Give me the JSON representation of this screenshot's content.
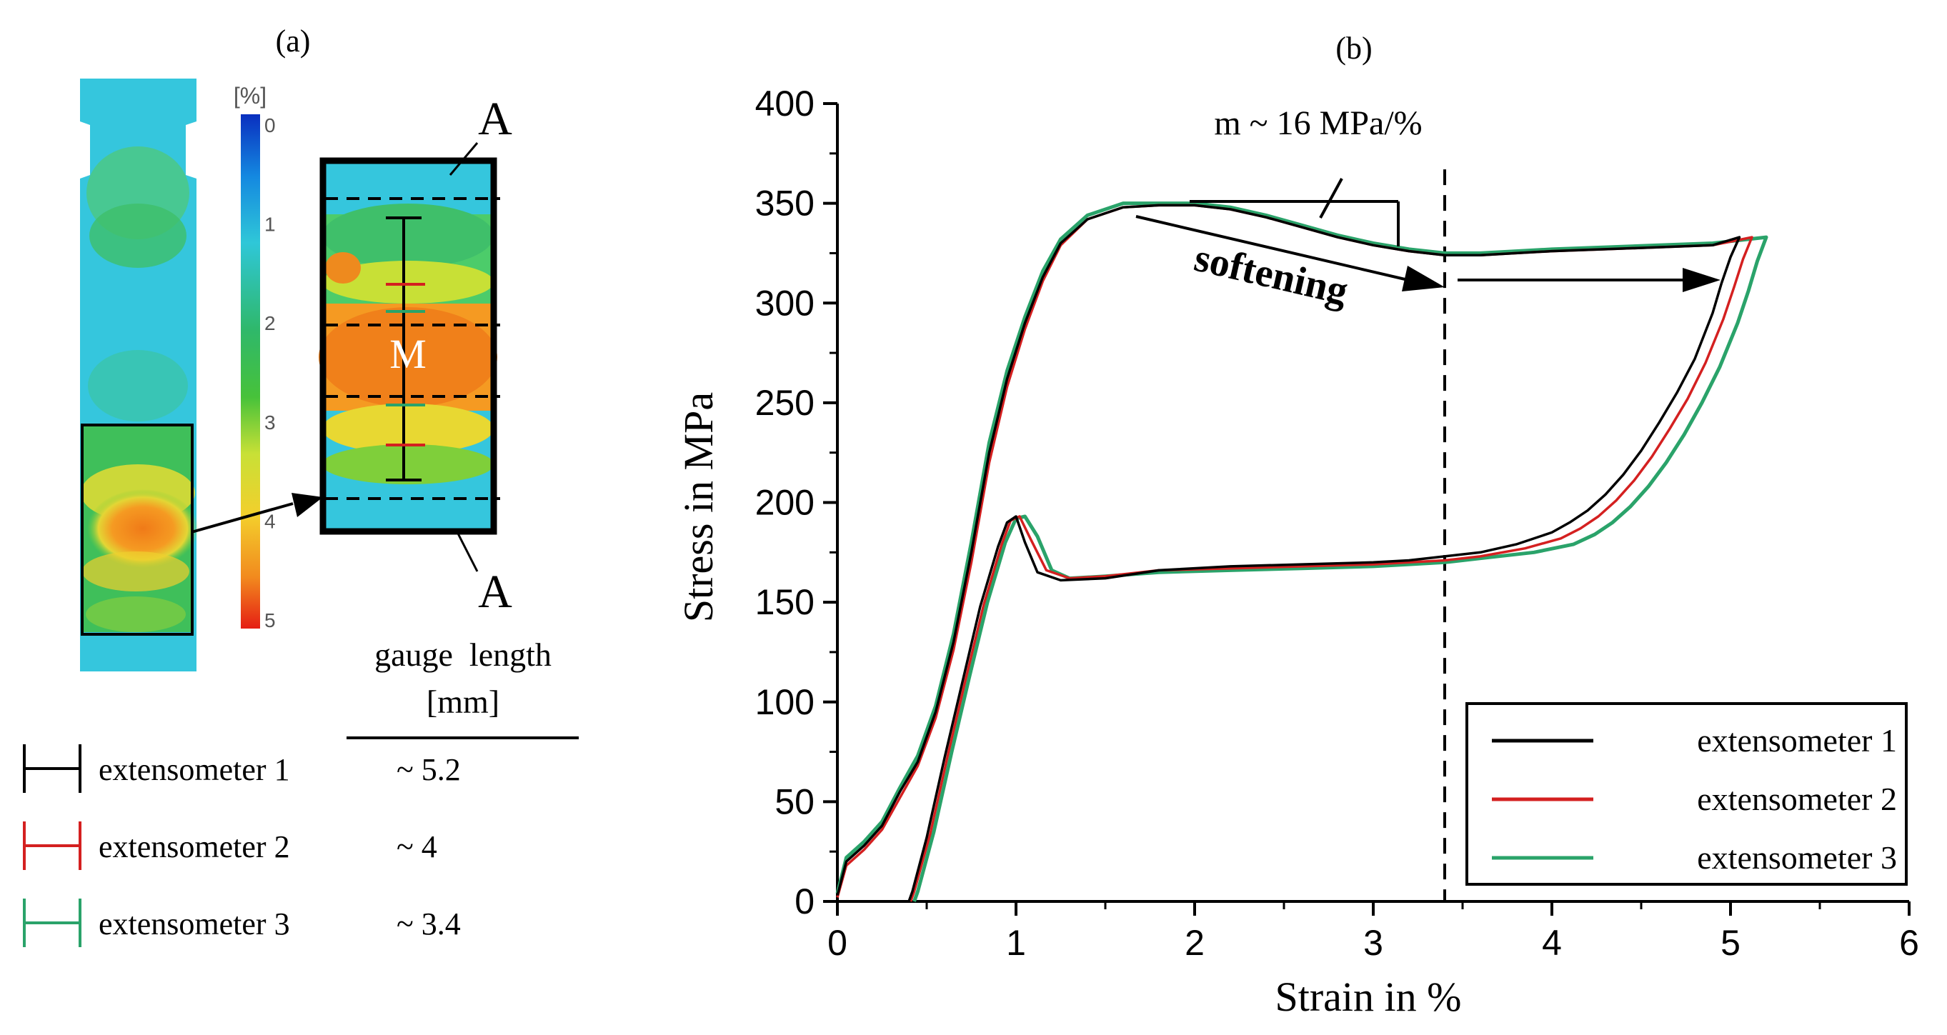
{
  "panel_a": {
    "label": "(a)",
    "colorbar": {
      "unit": "[%]",
      "ticks": [
        "0",
        "1",
        "2",
        "3",
        "4",
        "5"
      ]
    },
    "zoom_markers": {
      "top": "A",
      "bottom": "A",
      "center": "M"
    },
    "table": {
      "header_line1": "gauge  length",
      "header_line2": "[mm]",
      "rows": [
        {
          "name": "extensometer  1",
          "gauge": "~ 5.2",
          "color": "#000000"
        },
        {
          "name": "extensometer  2",
          "gauge": "~ 4",
          "color": "#d42020"
        },
        {
          "name": "extensometer  3",
          "gauge": "~ 3.4",
          "color": "#2aa36a"
        }
      ]
    }
  },
  "chart_data": {
    "type": "line",
    "panel_label": "(b)",
    "title": "",
    "xlabel": "Strain in %",
    "ylabel": "Stress in MPa",
    "xlim": [
      0,
      6
    ],
    "ylim": [
      0,
      400
    ],
    "xticks": [
      "0",
      "1",
      "2",
      "3",
      "4",
      "5",
      "6"
    ],
    "yticks": [
      "0",
      "50",
      "100",
      "150",
      "200",
      "250",
      "300",
      "350",
      "400"
    ],
    "grid": false,
    "legend_position": "bottom-right",
    "vline_x": 3.4,
    "annotations": {
      "slope": "m ~ 16 MPa/%",
      "softening": "softening"
    },
    "series": [
      {
        "name": "extensometer  1",
        "color": "#000000",
        "loading": [
          [
            0,
            3
          ],
          [
            0.05,
            20
          ],
          [
            0.15,
            28
          ],
          [
            0.25,
            38
          ],
          [
            0.35,
            55
          ],
          [
            0.45,
            70
          ],
          [
            0.55,
            95
          ],
          [
            0.65,
            130
          ],
          [
            0.75,
            175
          ],
          [
            0.85,
            225
          ],
          [
            0.95,
            262
          ],
          [
            1.05,
            290
          ],
          [
            1.15,
            313
          ],
          [
            1.25,
            330
          ],
          [
            1.4,
            342
          ],
          [
            1.6,
            348
          ],
          [
            1.8,
            349
          ],
          [
            2.0,
            349
          ],
          [
            2.2,
            347
          ],
          [
            2.4,
            343
          ],
          [
            2.6,
            338
          ],
          [
            2.8,
            333
          ],
          [
            3.0,
            329
          ],
          [
            3.2,
            326
          ],
          [
            3.4,
            324
          ],
          [
            3.6,
            324
          ],
          [
            3.8,
            325
          ],
          [
            4.0,
            326
          ],
          [
            4.3,
            327
          ],
          [
            4.6,
            328
          ],
          [
            4.9,
            329
          ],
          [
            5.05,
            333
          ]
        ],
        "unloading": [
          [
            5.05,
            333
          ],
          [
            5.0,
            323
          ],
          [
            4.95,
            310
          ],
          [
            4.9,
            295
          ],
          [
            4.8,
            272
          ],
          [
            4.7,
            255
          ],
          [
            4.6,
            240
          ],
          [
            4.5,
            226
          ],
          [
            4.4,
            214
          ],
          [
            4.3,
            204
          ],
          [
            4.2,
            196
          ],
          [
            4.1,
            190
          ],
          [
            4.0,
            185
          ],
          [
            3.8,
            179
          ],
          [
            3.6,
            175
          ],
          [
            3.4,
            173
          ],
          [
            3.2,
            171
          ],
          [
            3.0,
            170
          ],
          [
            2.6,
            169
          ],
          [
            2.2,
            168
          ],
          [
            1.8,
            166
          ],
          [
            1.5,
            162
          ],
          [
            1.25,
            161
          ],
          [
            1.12,
            165
          ],
          [
            1.05,
            180
          ],
          [
            1.0,
            193
          ],
          [
            0.95,
            190
          ],
          [
            0.9,
            178
          ],
          [
            0.8,
            148
          ],
          [
            0.7,
            110
          ],
          [
            0.6,
            72
          ],
          [
            0.5,
            32
          ],
          [
            0.42,
            5
          ],
          [
            0.4,
            0
          ]
        ]
      },
      {
        "name": "extensometer  2",
        "color": "#d42020",
        "loading": [
          [
            0,
            2
          ],
          [
            0.05,
            18
          ],
          [
            0.15,
            26
          ],
          [
            0.25,
            36
          ],
          [
            0.35,
            52
          ],
          [
            0.45,
            68
          ],
          [
            0.55,
            92
          ],
          [
            0.65,
            126
          ],
          [
            0.75,
            170
          ],
          [
            0.85,
            220
          ],
          [
            0.95,
            258
          ],
          [
            1.05,
            287
          ],
          [
            1.15,
            311
          ],
          [
            1.25,
            329
          ],
          [
            1.4,
            342
          ],
          [
            1.6,
            348
          ],
          [
            1.8,
            349
          ],
          [
            2.0,
            349
          ],
          [
            2.2,
            347
          ],
          [
            2.4,
            343
          ],
          [
            2.6,
            338
          ],
          [
            2.8,
            333
          ],
          [
            3.0,
            329
          ],
          [
            3.2,
            326
          ],
          [
            3.4,
            324
          ],
          [
            3.6,
            324
          ],
          [
            3.8,
            325
          ],
          [
            4.0,
            326
          ],
          [
            4.3,
            327
          ],
          [
            4.6,
            328
          ],
          [
            4.9,
            329
          ],
          [
            5.12,
            333
          ]
        ],
        "unloading": [
          [
            5.12,
            333
          ],
          [
            5.07,
            322
          ],
          [
            5.02,
            308
          ],
          [
            4.96,
            292
          ],
          [
            4.86,
            270
          ],
          [
            4.76,
            252
          ],
          [
            4.66,
            237
          ],
          [
            4.56,
            223
          ],
          [
            4.46,
            211
          ],
          [
            4.36,
            201
          ],
          [
            4.26,
            193
          ],
          [
            4.16,
            187
          ],
          [
            4.05,
            182
          ],
          [
            3.85,
            177
          ],
          [
            3.6,
            173
          ],
          [
            3.4,
            171
          ],
          [
            3.2,
            170
          ],
          [
            3.0,
            169
          ],
          [
            2.6,
            168
          ],
          [
            2.2,
            167
          ],
          [
            1.8,
            166
          ],
          [
            1.5,
            163
          ],
          [
            1.3,
            162
          ],
          [
            1.17,
            166
          ],
          [
            1.08,
            182
          ],
          [
            1.02,
            193
          ],
          [
            0.97,
            191
          ],
          [
            0.92,
            179
          ],
          [
            0.82,
            149
          ],
          [
            0.72,
            112
          ],
          [
            0.62,
            74
          ],
          [
            0.52,
            34
          ],
          [
            0.43,
            5
          ],
          [
            0.41,
            0
          ]
        ]
      },
      {
        "name": "extensometer  3",
        "color": "#2aa36a",
        "loading": [
          [
            0,
            4
          ],
          [
            0.05,
            22
          ],
          [
            0.15,
            30
          ],
          [
            0.25,
            40
          ],
          [
            0.35,
            57
          ],
          [
            0.45,
            73
          ],
          [
            0.55,
            98
          ],
          [
            0.65,
            134
          ],
          [
            0.75,
            180
          ],
          [
            0.85,
            230
          ],
          [
            0.95,
            266
          ],
          [
            1.05,
            293
          ],
          [
            1.15,
            316
          ],
          [
            1.25,
            332
          ],
          [
            1.4,
            344
          ],
          [
            1.6,
            350
          ],
          [
            1.8,
            350
          ],
          [
            2.0,
            350
          ],
          [
            2.2,
            348
          ],
          [
            2.4,
            344
          ],
          [
            2.6,
            339
          ],
          [
            2.8,
            334
          ],
          [
            3.0,
            330
          ],
          [
            3.2,
            327
          ],
          [
            3.4,
            325
          ],
          [
            3.6,
            325
          ],
          [
            3.8,
            326
          ],
          [
            4.0,
            327
          ],
          [
            4.3,
            328
          ],
          [
            4.6,
            329
          ],
          [
            4.9,
            330
          ],
          [
            5.2,
            333
          ]
        ],
        "unloading": [
          [
            5.2,
            333
          ],
          [
            5.15,
            321
          ],
          [
            5.1,
            306
          ],
          [
            5.04,
            290
          ],
          [
            4.94,
            268
          ],
          [
            4.84,
            250
          ],
          [
            4.74,
            234
          ],
          [
            4.64,
            220
          ],
          [
            4.54,
            208
          ],
          [
            4.44,
            198
          ],
          [
            4.34,
            190
          ],
          [
            4.24,
            184
          ],
          [
            4.12,
            179
          ],
          [
            3.9,
            175
          ],
          [
            3.6,
            172
          ],
          [
            3.4,
            170
          ],
          [
            3.2,
            169
          ],
          [
            3.0,
            168
          ],
          [
            2.6,
            167
          ],
          [
            2.2,
            166
          ],
          [
            1.8,
            165
          ],
          [
            1.5,
            163
          ],
          [
            1.3,
            162
          ],
          [
            1.2,
            166
          ],
          [
            1.12,
            183
          ],
          [
            1.05,
            193
          ],
          [
            1.0,
            192
          ],
          [
            0.94,
            180
          ],
          [
            0.84,
            150
          ],
          [
            0.74,
            113
          ],
          [
            0.64,
            75
          ],
          [
            0.54,
            35
          ],
          [
            0.45,
            5
          ],
          [
            0.43,
            0
          ]
        ]
      }
    ]
  }
}
